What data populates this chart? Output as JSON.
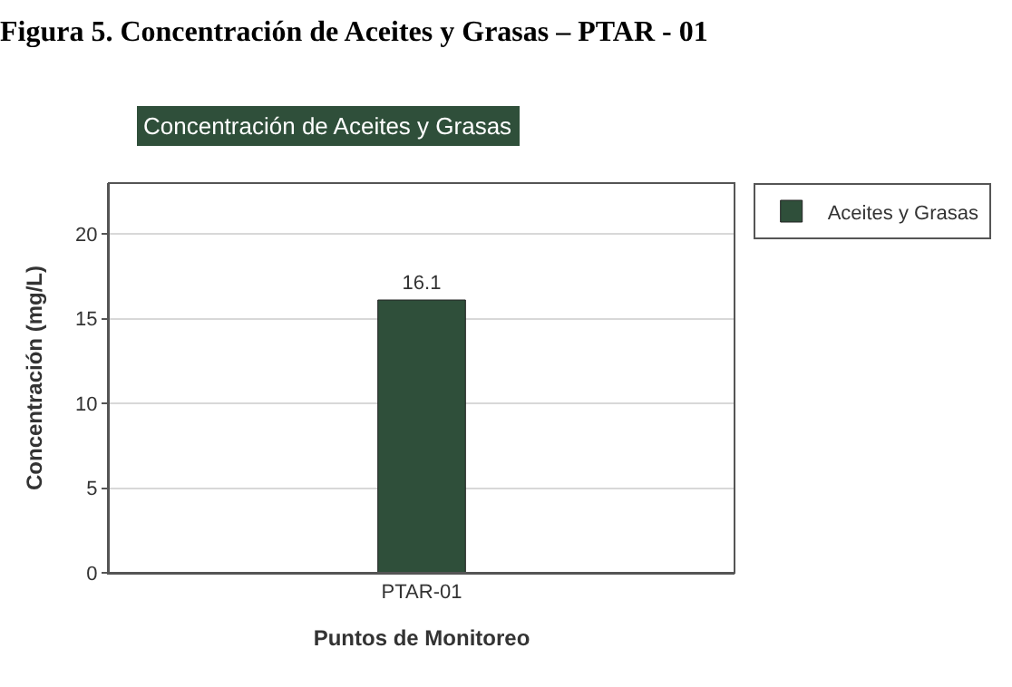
{
  "chart_data": {
    "type": "bar",
    "title": "Figura 5. Concentración de Aceites y Grasas – PTAR - 01",
    "subtitle": "Concentración de Aceites y Grasas",
    "xlabel": "Puntos de Monitoreo",
    "ylabel": "Concentración (mg/L)",
    "categories": [
      "PTAR-01"
    ],
    "series": [
      {
        "name": "Aceites y Grasas",
        "color": "#2f4f3a",
        "values": [
          16.1
        ]
      }
    ],
    "ylim": [
      0,
      23
    ],
    "yticks": [
      0,
      5,
      10,
      15,
      20
    ],
    "grid": "y",
    "legend": "top right",
    "data_labels": true
  }
}
